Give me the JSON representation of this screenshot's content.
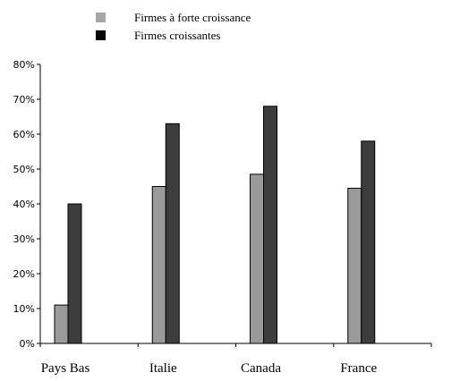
{
  "chart_data": {
    "type": "bar",
    "title": "",
    "xlabel": "",
    "ylabel": "",
    "categories": [
      "Pays Bas",
      "Italie",
      "Canada",
      "France"
    ],
    "series": [
      {
        "name": "Firmes à forte croissance",
        "values": [
          11,
          45,
          48.5,
          44.5
        ],
        "color": "#9a9a9a"
      },
      {
        "name": "Firmes croissantes",
        "values": [
          40,
          63,
          68,
          58
        ],
        "color": "#3d3d3d"
      }
    ],
    "ylim": [
      0,
      80
    ],
    "yticks": [
      0,
      10,
      20,
      30,
      40,
      50,
      60,
      70,
      80
    ],
    "ytick_labels": [
      "0%",
      "10%",
      "20%",
      "30%",
      "40%",
      "50%",
      "60%",
      "70%",
      "80%"
    ],
    "grid": false,
    "legend_position": "top-left"
  }
}
